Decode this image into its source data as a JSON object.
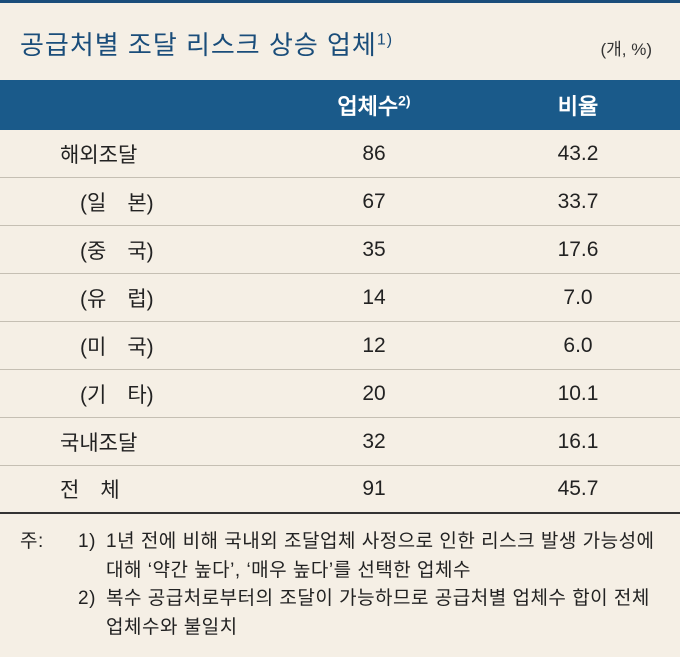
{
  "title": "공급처별 조달 리스크 상승 업체",
  "title_sup": "1)",
  "unit": "(개, %)",
  "headers": {
    "count": "업체수",
    "count_sup": "2)",
    "ratio": "비율"
  },
  "rows": [
    {
      "label": "해외조달",
      "count": "86",
      "ratio": "43.2",
      "indent": false
    },
    {
      "label": "(일　본)",
      "count": "67",
      "ratio": "33.7",
      "indent": true
    },
    {
      "label": "(중　국)",
      "count": "35",
      "ratio": "17.6",
      "indent": true
    },
    {
      "label": "(유　럽)",
      "count": "14",
      "ratio": "7.0",
      "indent": true
    },
    {
      "label": "(미　국)",
      "count": "12",
      "ratio": "6.0",
      "indent": true
    },
    {
      "label": "(기　타)",
      "count": "20",
      "ratio": "10.1",
      "indent": true
    },
    {
      "label": "국내조달",
      "count": "32",
      "ratio": "16.1",
      "indent": false
    },
    {
      "label": "전　체",
      "count": "91",
      "ratio": "45.7",
      "indent": false
    }
  ],
  "notes": {
    "prefix": "주:",
    "items": [
      {
        "num": "1)",
        "text": "1년 전에 비해 국내외 조달업체 사정으로 인한 리스크 발생 가능성에 대해 ‘약간 높다’, ‘매우 높다’를 선택한 업체수"
      },
      {
        "num": "2)",
        "text": "복수 공급처로부터의 조달이 가능하므로 공급처별 업체수 합이 전체 업체수와 불일치"
      }
    ]
  },
  "colors": {
    "header_bg": "#1a5a8a",
    "header_text": "#ffffff",
    "title_text": "#1a4d7a",
    "body_bg": "#f5efe5",
    "row_border": "#c5bfb3",
    "top_border": "#1a4d7a"
  }
}
